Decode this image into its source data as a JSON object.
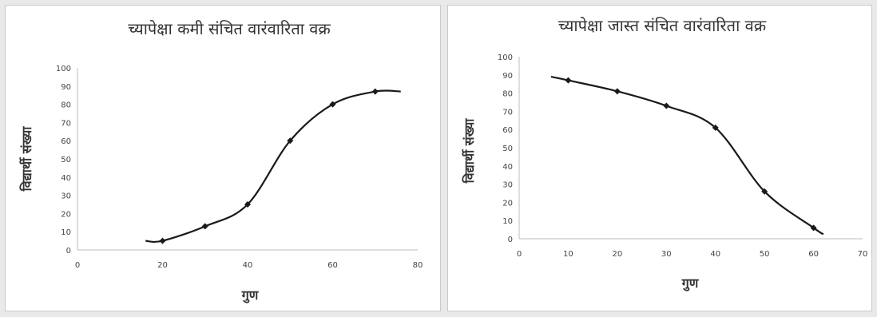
{
  "chart_data": [
    {
      "type": "line",
      "title": "च्यापेक्षा कमी संचित वारंवारिता वक्र",
      "xlabel": "गुण",
      "ylabel": "विद्यार्थी संख्या",
      "xlim": [
        0,
        80
      ],
      "ylim": [
        0,
        100
      ],
      "xticks": [
        "0",
        "20",
        "40",
        "60",
        "80"
      ],
      "yticks": [
        "0",
        "10",
        "20",
        "30",
        "40",
        "50",
        "60",
        "70",
        "80",
        "90",
        "100"
      ],
      "points": [
        {
          "x": 20,
          "y": 5
        },
        {
          "x": 30,
          "y": 13
        },
        {
          "x": 40,
          "y": 25
        },
        {
          "x": 50,
          "y": 60
        },
        {
          "x": 60,
          "y": 80
        },
        {
          "x": 70,
          "y": 87
        }
      ],
      "curve": [
        {
          "x": 16,
          "y": 5
        },
        {
          "x": 20,
          "y": 5
        },
        {
          "x": 30,
          "y": 13
        },
        {
          "x": 40,
          "y": 25
        },
        {
          "x": 50,
          "y": 60
        },
        {
          "x": 60,
          "y": 80
        },
        {
          "x": 70,
          "y": 87
        },
        {
          "x": 76,
          "y": 87
        }
      ],
      "grid": false,
      "legend": "none",
      "line_color": "#1a1a1a"
    },
    {
      "type": "line",
      "title": "च्यापेक्षा जास्त संचित वारंवारिता वक्र",
      "xlabel": "गुण",
      "ylabel": "विद्यार्थी संख्या",
      "xlim": [
        0,
        70
      ],
      "ylim": [
        0,
        100
      ],
      "xticks": [
        "0",
        "10",
        "20",
        "30",
        "40",
        "50",
        "60",
        "70"
      ],
      "yticks": [
        "0",
        "10",
        "20",
        "30",
        "40",
        "50",
        "60",
        "70",
        "80",
        "90",
        "100"
      ],
      "points": [
        {
          "x": 10,
          "y": 87
        },
        {
          "x": 20,
          "y": 81
        },
        {
          "x": 30,
          "y": 73
        },
        {
          "x": 40,
          "y": 61
        },
        {
          "x": 50,
          "y": 26
        },
        {
          "x": 60,
          "y": 6
        }
      ],
      "curve": [
        {
          "x": 6.5,
          "y": 89
        },
        {
          "x": 10,
          "y": 87
        },
        {
          "x": 20,
          "y": 81
        },
        {
          "x": 30,
          "y": 73
        },
        {
          "x": 40,
          "y": 61
        },
        {
          "x": 50,
          "y": 26
        },
        {
          "x": 60,
          "y": 6
        },
        {
          "x": 62,
          "y": 2.5
        }
      ],
      "grid": false,
      "legend": "none",
      "line_color": "#1a1a1a"
    }
  ]
}
